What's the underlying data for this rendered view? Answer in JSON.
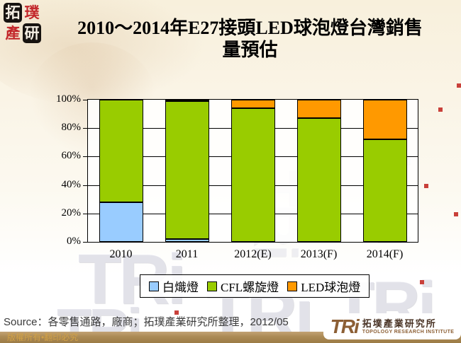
{
  "title": {
    "line1": "2010～2014年E27接頭LED球泡燈台灣銷售",
    "line2": "量預估"
  },
  "logo": {
    "chars": [
      "拓",
      "璞",
      "產",
      "研"
    ]
  },
  "chart_data": {
    "type": "bar",
    "stacked": true,
    "orientation": "vertical",
    "categories": [
      "2010",
      "2011",
      "2012(E)",
      "2013(F)",
      "2014(F)"
    ],
    "series": [
      {
        "name": "白熾燈",
        "color": "#99CCFF",
        "values": [
          28,
          2,
          0,
          0,
          0
        ]
      },
      {
        "name": "CFL螺旋燈",
        "color": "#99CC00",
        "values": [
          72,
          97,
          94,
          87,
          72
        ]
      },
      {
        "name": "LED球泡燈",
        "color": "#FF9900",
        "values": [
          0,
          1,
          6,
          13,
          28
        ]
      }
    ],
    "unit": "percent",
    "ylim": [
      0,
      100
    ],
    "yticks": [
      "0%",
      "20%",
      "40%",
      "60%",
      "80%",
      "100%"
    ],
    "grid": true,
    "legend_position": "bottom"
  },
  "legend": {
    "items": [
      {
        "label": "白熾燈",
        "color": "#99CCFF"
      },
      {
        "label": "CFL螺旋燈",
        "color": "#99CC00"
      },
      {
        "label": "LED球泡燈",
        "color": "#FF9900"
      }
    ]
  },
  "source": {
    "text": "Source：各零售通路，廠商；拓璞產業研究所整理，2012/05"
  },
  "footer": {
    "copyright": "版權所有•翻印必究"
  },
  "tri_logo": {
    "wordmark": "TRi",
    "name_zh": "拓墣產業研究所",
    "name_en": "TOPOLOGY RESEARCH INSTITUTE"
  },
  "watermark": {
    "text": "TRi"
  },
  "colors": {
    "bar_border": "#000000",
    "footer_bar": "#AB8A55",
    "accent_red": "#C3272B",
    "logo_brown": "#8C5F35"
  }
}
